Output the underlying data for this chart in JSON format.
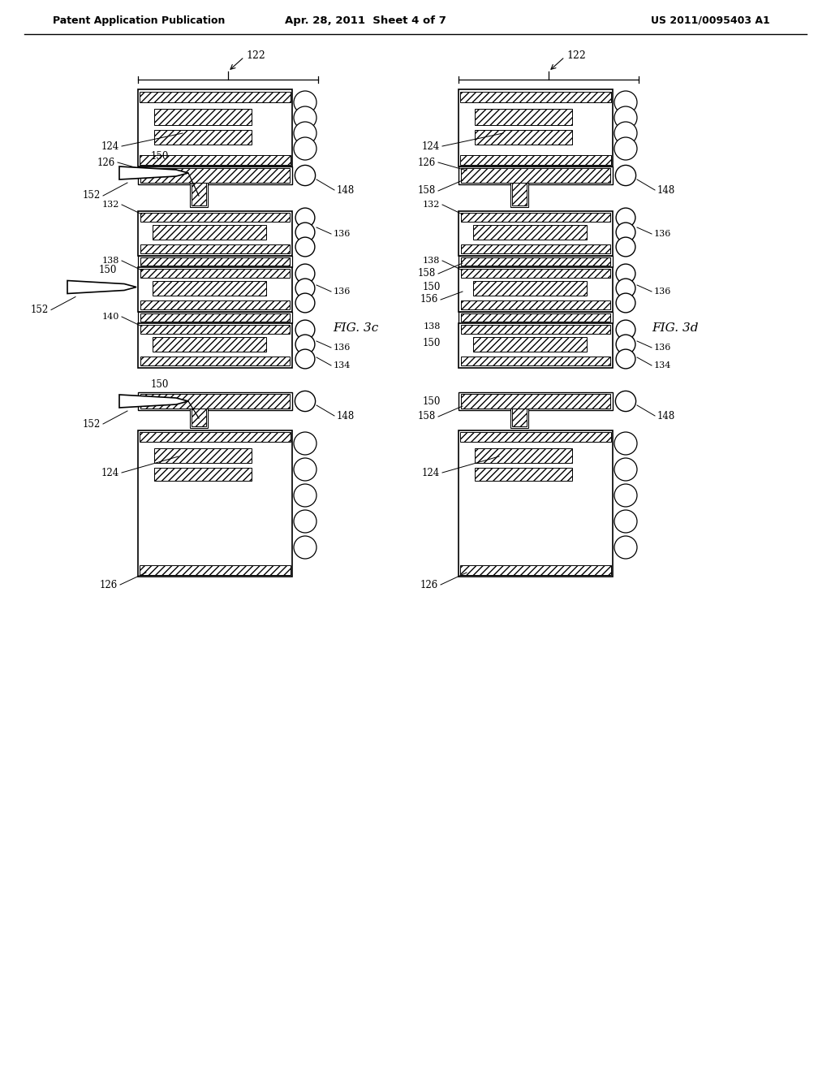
{
  "background_color": "#ffffff",
  "header_left": "Patent Application Publication",
  "header_center": "Apr. 28, 2011  Sheet 4 of 7",
  "header_right": "US 2011/0095403 A1",
  "fig3c_label": "FIG. 3c",
  "fig3d_label": "FIG. 3d"
}
